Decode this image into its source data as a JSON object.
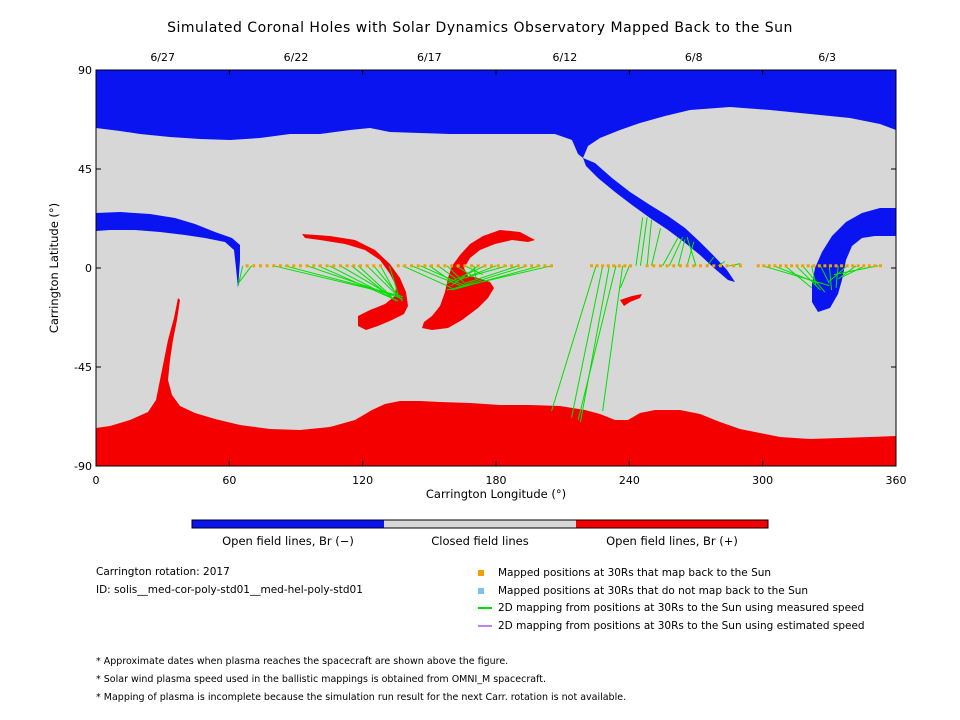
{
  "chart_data": {
    "type": "map",
    "title": "Simulated Coronal Holes with Solar Dynamics Observatory Mapped Back to the Sun",
    "xlabel": "Carrington Longitude (°)",
    "ylabel": "Carrington Latitude (°)",
    "xlim": [
      0,
      360
    ],
    "ylim": [
      -90,
      90
    ],
    "x_ticks": [
      "0",
      "60",
      "120",
      "180",
      "240",
      "300",
      "360"
    ],
    "y_ticks": [
      "90",
      "45",
      "0",
      "-45",
      "-90"
    ],
    "top_dates": [
      {
        "label": "6/27",
        "lon": 30
      },
      {
        "label": "6/22",
        "lon": 90
      },
      {
        "label": "6/17",
        "lon": 150
      },
      {
        "label": "6/12",
        "lon": 211
      },
      {
        "label": "6/8",
        "lon": 269
      },
      {
        "label": "6/3",
        "lon": 329
      }
    ],
    "colors": {
      "open_negative": "#0a14f0",
      "closed": "#d7d7d7",
      "open_positive": "#f50000",
      "mapped": "#f0a000",
      "unmapped": "#80c0f0",
      "measured_line": "#00e000",
      "estimated_line": "#c080f0"
    }
  },
  "colorbar": {
    "negative_label": "Open field lines, Br (−)",
    "closed_label": "Closed field lines",
    "positive_label": "Open field lines, Br (+)"
  },
  "info": {
    "carrington_rotation": "Carrington rotation: 2017",
    "id": "ID: solis__med-cor-poly-std01__med-hel-poly-std01"
  },
  "legend": {
    "mapped": "Mapped positions at 30Rs that map back to the Sun",
    "unmapped": "Mapped positions at 30Rs that do not map back to the Sun",
    "measured": "2D mapping from positions at 30Rs to the Sun using measured speed",
    "estimated": "2D mapping from positions at 30Rs to the Sun using estimated speed"
  },
  "notes": [
    "* Approximate dates when plasma reaches the spacecraft are shown above the figure.",
    "* Solar wind plasma speed used in the ballistic mappings is obtained from OMNI_M spacecraft.",
    "* Mapping of plasma is incomplete because the simulation run result for the next Carr. rotation is not available."
  ]
}
